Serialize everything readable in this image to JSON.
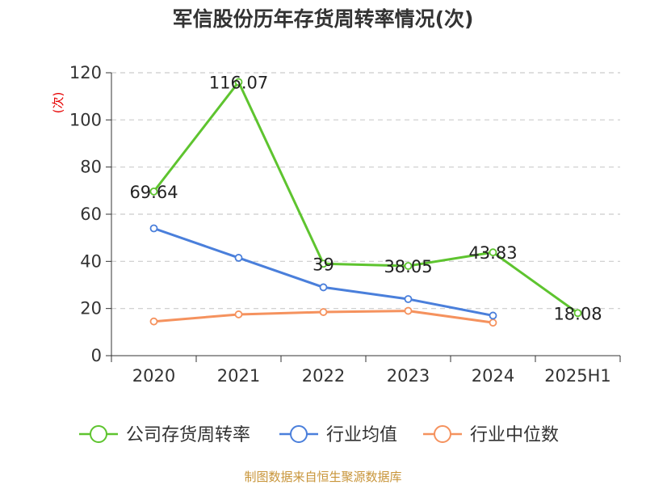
{
  "source_text": "制图数据来自恒生聚源数据库",
  "chart_data": {
    "type": "line",
    "title": "军信股份历年存货周转率情况(次)",
    "ylabel": "(次)",
    "xlabel": "",
    "categories": [
      "2020",
      "2021",
      "2022",
      "2023",
      "2024",
      "2025H1"
    ],
    "ylim": [
      0,
      120
    ],
    "yticks": [
      0,
      20,
      40,
      60,
      80,
      100,
      120
    ],
    "grid": true,
    "legend_position": "bottom",
    "series": [
      {
        "name": "公司存货周转率",
        "color": "#5ec42f",
        "values": [
          69.64,
          116.07,
          39,
          38.05,
          43.83,
          18.08
        ],
        "labels": [
          "69.64",
          "116.07",
          "39",
          "38.05",
          "43.83",
          "18.08"
        ],
        "show_labels": true
      },
      {
        "name": "行业均值",
        "color": "#4a7fdb",
        "values": [
          54,
          41.5,
          29,
          24,
          17,
          null
        ],
        "show_labels": false
      },
      {
        "name": "行业中位数",
        "color": "#f5925e",
        "values": [
          14.5,
          17.5,
          18.5,
          19,
          14,
          null
        ],
        "show_labels": false
      }
    ]
  }
}
